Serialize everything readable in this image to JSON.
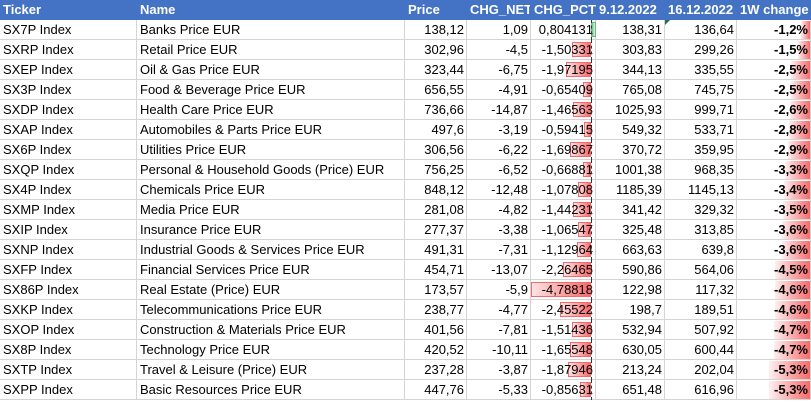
{
  "headers": [
    "Ticker",
    "Name",
    "Price",
    "CHG_NET",
    "CHG_PCT",
    "9.12.2022",
    "16.12.2022",
    "1W change"
  ],
  "rows": [
    {
      "ticker": "SX7P Index",
      "name": "Banks Price EUR",
      "price": "138,12",
      "chg_net": "1,09",
      "chg_pct": "0,804131",
      "pct_value": 0.804131,
      "d1": "138,31",
      "d2": "136,64",
      "week": "-1,2%",
      "week_value": -1.2
    },
    {
      "ticker": "SXRP Index",
      "name": "Retail Price EUR",
      "price": "302,96",
      "chg_net": "-4,5",
      "chg_pct": "-1,50331",
      "pct_value": -1.50331,
      "d1": "303,83",
      "d2": "299,26",
      "week": "-1,5%",
      "week_value": -1.5
    },
    {
      "ticker": "SXEP Index",
      "name": "Oil & Gas Price EUR",
      "price": "323,44",
      "chg_net": "-6,75",
      "chg_pct": "-1,97195",
      "pct_value": -1.97195,
      "d1": "344,13",
      "d2": "335,55",
      "week": "-2,5%",
      "week_value": -2.5
    },
    {
      "ticker": "SX3P Index",
      "name": "Food & Beverage Price EUR",
      "price": "656,55",
      "chg_net": "-4,91",
      "chg_pct": "-0,65409",
      "pct_value": -0.65409,
      "d1": "765,08",
      "d2": "745,75",
      "week": "-2,5%",
      "week_value": -2.5
    },
    {
      "ticker": "SXDP Index",
      "name": "Health Care Price EUR",
      "price": "736,66",
      "chg_net": "-14,87",
      "chg_pct": "-1,46563",
      "pct_value": -1.46563,
      "d1": "1025,93",
      "d2": "999,71",
      "week": "-2,6%",
      "week_value": -2.6
    },
    {
      "ticker": "SXAP Index",
      "name": "Automobiles & Parts Price EUR",
      "price": "497,6",
      "chg_net": "-3,19",
      "chg_pct": "-0,59415",
      "pct_value": -0.59415,
      "d1": "549,32",
      "d2": "533,71",
      "week": "-2,8%",
      "week_value": -2.8
    },
    {
      "ticker": "SX6P Index",
      "name": "Utilities Price EUR",
      "price": "306,56",
      "chg_net": "-6,22",
      "chg_pct": "-1,69867",
      "pct_value": -1.69867,
      "d1": "370,72",
      "d2": "359,95",
      "week": "-2,9%",
      "week_value": -2.9
    },
    {
      "ticker": "SXQP Index",
      "name": "Personal & Household Goods (Price) EUR",
      "price": "756,25",
      "chg_net": "-6,52",
      "chg_pct": "-0,66881",
      "pct_value": -0.66881,
      "d1": "1001,38",
      "d2": "968,35",
      "week": "-3,3%",
      "week_value": -3.3
    },
    {
      "ticker": "SX4P Index",
      "name": "Chemicals Price EUR",
      "price": "848,12",
      "chg_net": "-12,48",
      "chg_pct": "-1,07808",
      "pct_value": -1.07808,
      "d1": "1185,39",
      "d2": "1145,13",
      "week": "-3,4%",
      "week_value": -3.4
    },
    {
      "ticker": "SXMP Index",
      "name": "Media Price EUR",
      "price": "281,08",
      "chg_net": "-4,82",
      "chg_pct": "-1,44231",
      "pct_value": -1.44231,
      "d1": "341,42",
      "d2": "329,32",
      "week": "-3,5%",
      "week_value": -3.5
    },
    {
      "ticker": "SXIP Index",
      "name": "Insurance Price EUR",
      "price": "277,37",
      "chg_net": "-3,38",
      "chg_pct": "-1,06547",
      "pct_value": -1.06547,
      "d1": "325,48",
      "d2": "313,85",
      "week": "-3,6%",
      "week_value": -3.6
    },
    {
      "ticker": "SXNP Index",
      "name": "Industrial Goods & Services Price EUR",
      "price": "491,31",
      "chg_net": "-7,31",
      "chg_pct": "-1,12964",
      "pct_value": -1.12964,
      "d1": "663,63",
      "d2": "639,8",
      "week": "-3,6%",
      "week_value": -3.6
    },
    {
      "ticker": "SXFP Index",
      "name": "Financial Services Price EUR",
      "price": "454,71",
      "chg_net": "-13,07",
      "chg_pct": "-2,26465",
      "pct_value": -2.26465,
      "d1": "590,86",
      "d2": "564,06",
      "week": "-4,5%",
      "week_value": -4.5
    },
    {
      "ticker": "SX86P Index",
      "name": "Real Estate (Price) EUR",
      "price": "173,57",
      "chg_net": "-5,9",
      "chg_pct": "-4,78818",
      "pct_value": -4.78818,
      "d1": "122,98",
      "d2": "117,32",
      "week": "-4,6%",
      "week_value": -4.6
    },
    {
      "ticker": "SXKP Index",
      "name": "Telecommunications Price EUR",
      "price": "238,77",
      "chg_net": "-4,77",
      "chg_pct": "-2,45522",
      "pct_value": -2.45522,
      "d1": "198,7",
      "d2": "189,51",
      "week": "-4,6%",
      "week_value": -4.6
    },
    {
      "ticker": "SXOP Index",
      "name": "Construction & Materials Price EUR",
      "price": "401,56",
      "chg_net": "-7,81",
      "chg_pct": "-1,51436",
      "pct_value": -1.51436,
      "d1": "532,94",
      "d2": "507,92",
      "week": "-4,7%",
      "week_value": -4.7
    },
    {
      "ticker": "SX8P Index",
      "name": "Technology Price EUR",
      "price": "420,52",
      "chg_net": "-10,11",
      "chg_pct": "-1,65548",
      "pct_value": -1.65548,
      "d1": "630,05",
      "d2": "600,44",
      "week": "-4,7%",
      "week_value": -4.7
    },
    {
      "ticker": "SXTP Index",
      "name": "Travel & Leisure (Price) EUR",
      "price": "237,28",
      "chg_net": "-3,87",
      "chg_pct": "-1,87946",
      "pct_value": -1.87946,
      "d1": "213,24",
      "d2": "202,04",
      "week": "-5,3%",
      "week_value": -5.3
    },
    {
      "ticker": "SXPP Index",
      "name": "Basic Resources Price EUR",
      "price": "447,76",
      "chg_net": "-5,33",
      "chg_pct": "-0,85631",
      "pct_value": -0.85631,
      "d1": "651,48",
      "d2": "616,96",
      "week": "-5,3%",
      "week_value": -5.3
    }
  ],
  "colors": {
    "header_bg": "#4472c4",
    "header_text": "#ffffff",
    "positive_bar": "#63be7b",
    "negative_bar": "#f8696b",
    "gridline": "#d4d4d4"
  }
}
